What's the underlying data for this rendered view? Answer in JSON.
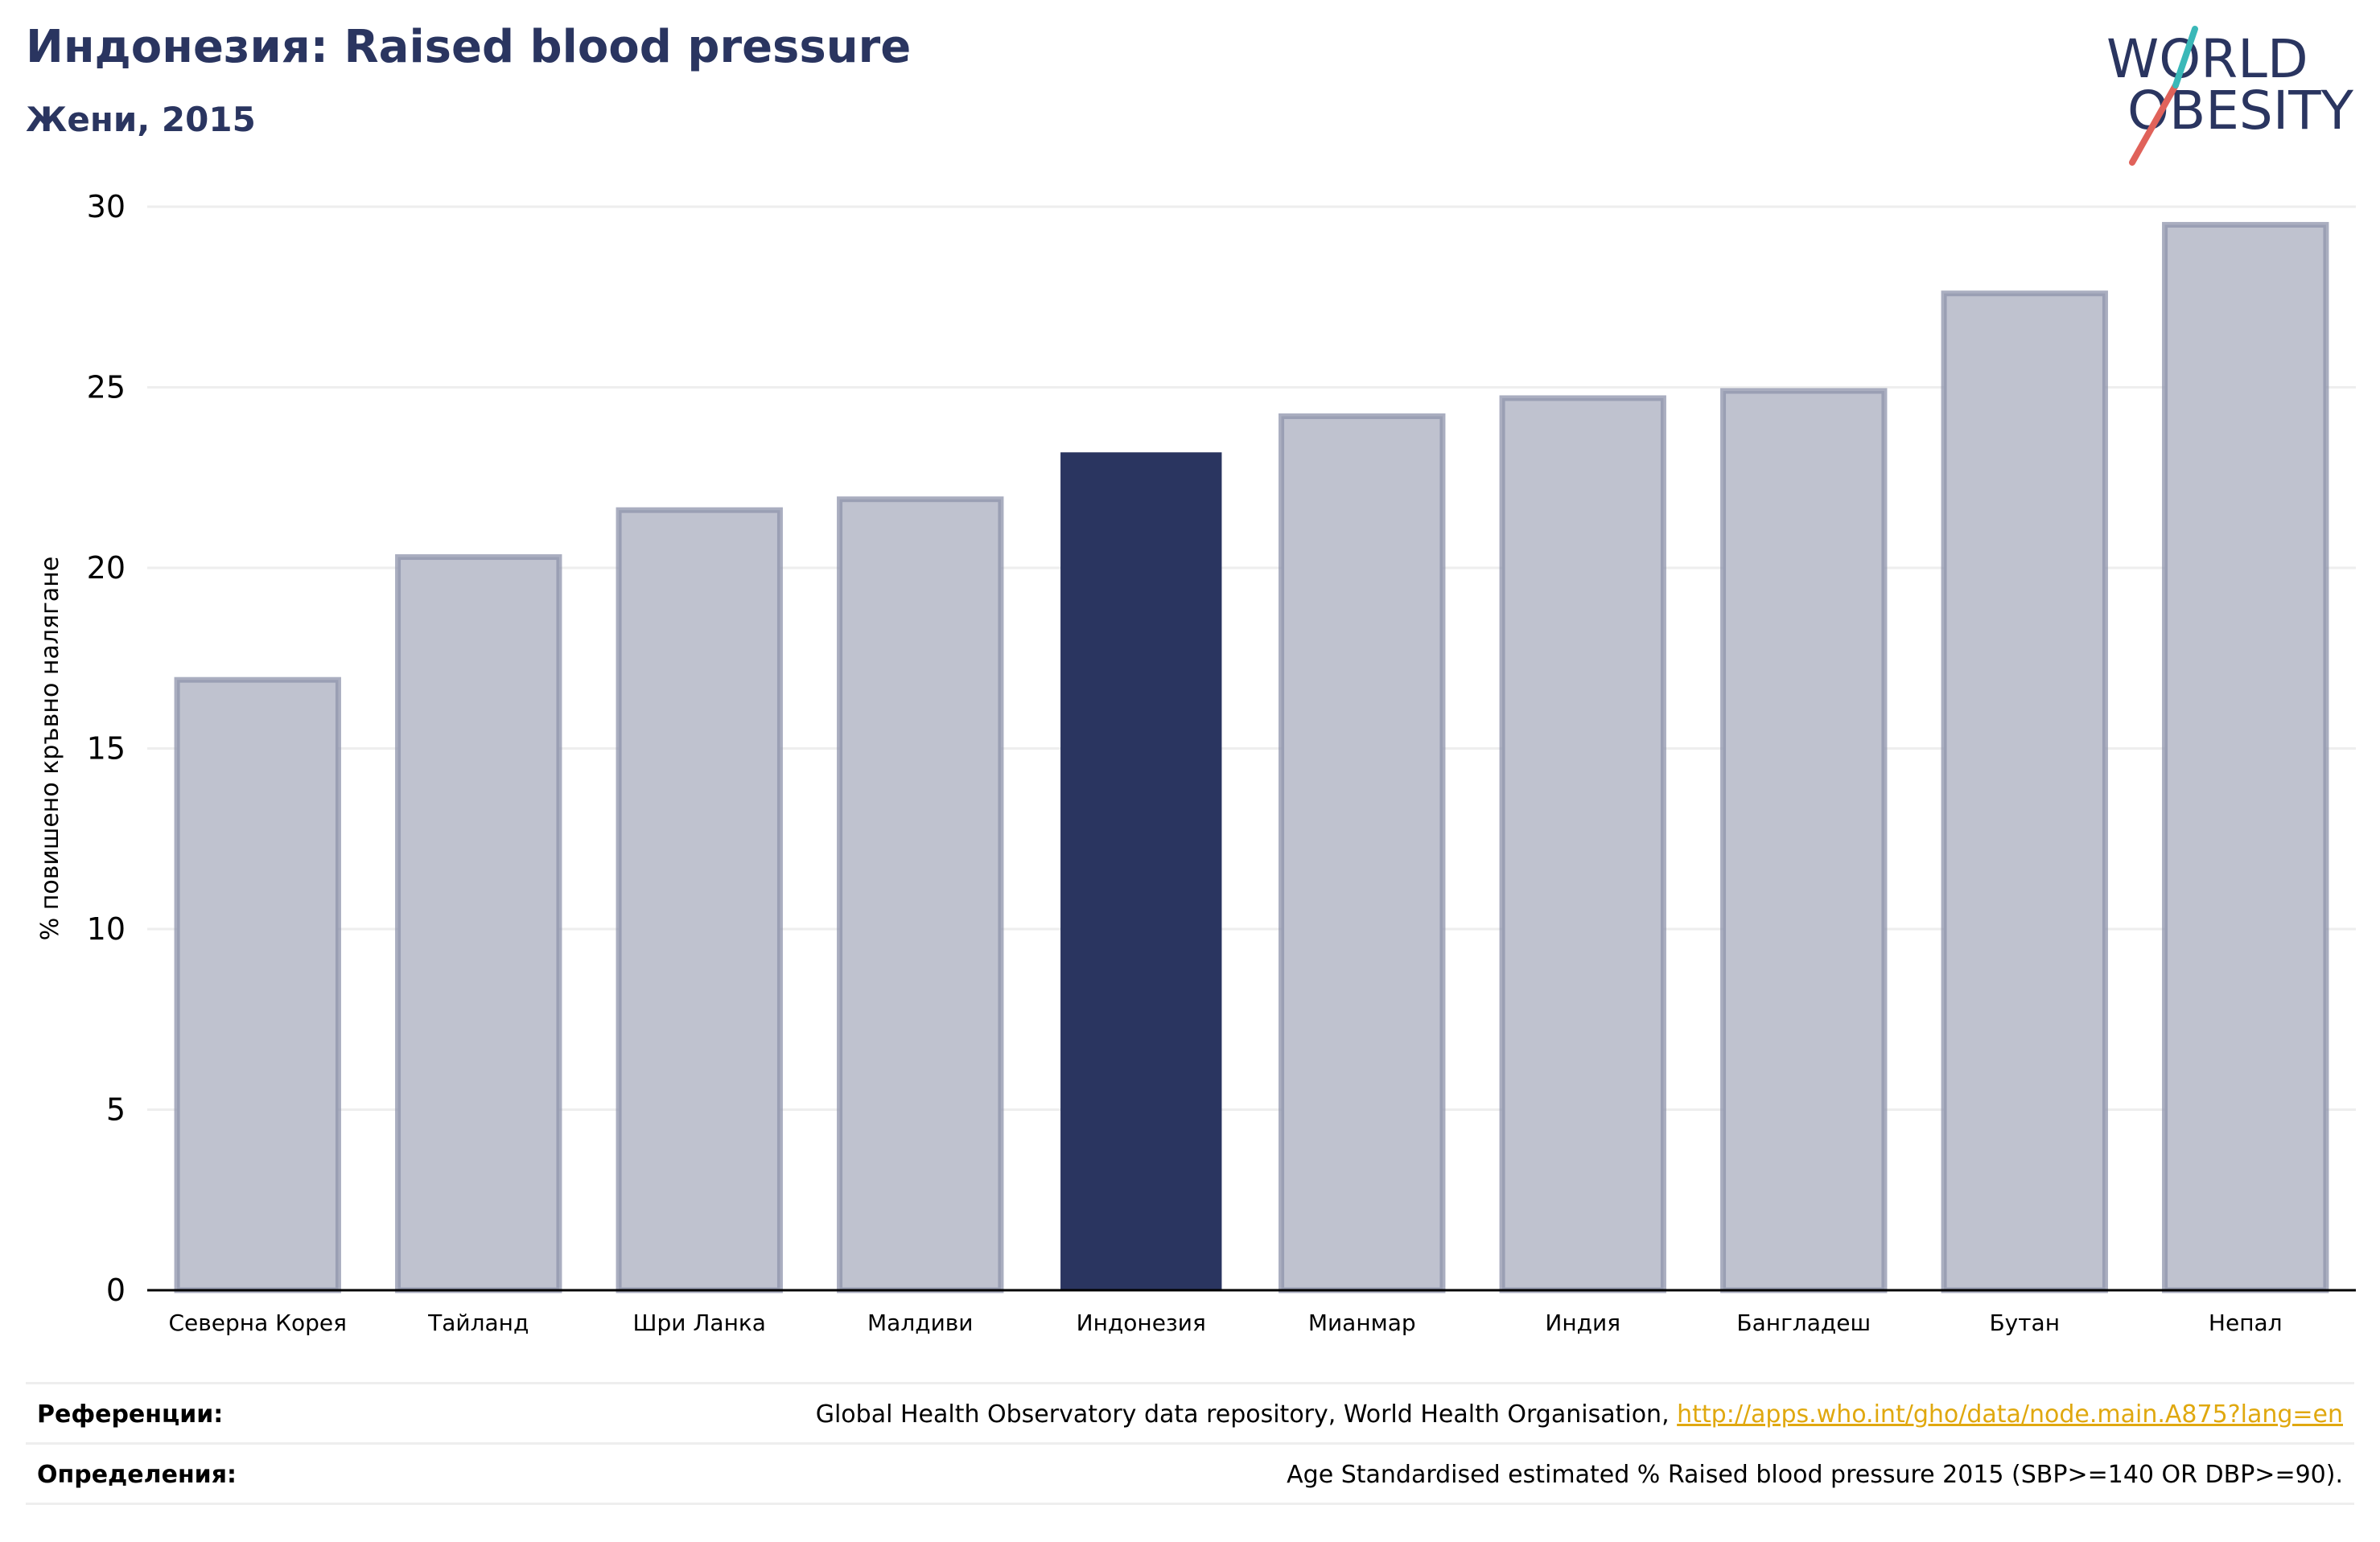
{
  "header": {
    "title": "Индонезия: Raised blood pressure",
    "subtitle": "Жени, 2015"
  },
  "logo": {
    "line1": "WORLD",
    "line2": "OBESITY",
    "colors": {
      "text": "#2a3560",
      "slash_red": "#e0625a",
      "slash_teal": "#3ab8b8"
    }
  },
  "chart_data": {
    "type": "bar",
    "title": "",
    "xlabel": "",
    "ylabel": "% повишено кръвно налягане",
    "ylim": [
      0,
      30
    ],
    "yticks": [
      0,
      5,
      10,
      15,
      20,
      25,
      30
    ],
    "grid": true,
    "categories": [
      "Северна Корея",
      "Тайланд",
      "Шри Ланка",
      "Малдиви",
      "Индонезия",
      "Мианмар",
      "Индия",
      "Бангладеш",
      "Бутан",
      "Непал"
    ],
    "values": [
      16.9,
      20.3,
      21.6,
      21.9,
      23.2,
      24.2,
      24.7,
      24.9,
      27.6,
      29.5
    ],
    "highlight": "Индонезия",
    "colors": {
      "bar": "#bfc2cf",
      "bar_edge": "#8e93ab",
      "highlight": "#2a3560",
      "grid": "#eeeeee",
      "axis": "#000000"
    }
  },
  "footer": {
    "references_label": "Референции:",
    "references_text": "Global Health Observatory data repository, World Health Organisation, ",
    "references_link": "http://apps.who.int/gho/data/node.main.A875?lang=en",
    "definitions_label": "Определения:",
    "definitions_text": "Age Standardised estimated % Raised blood pressure 2015 (SBP>=140 OR DBP>=90)."
  }
}
